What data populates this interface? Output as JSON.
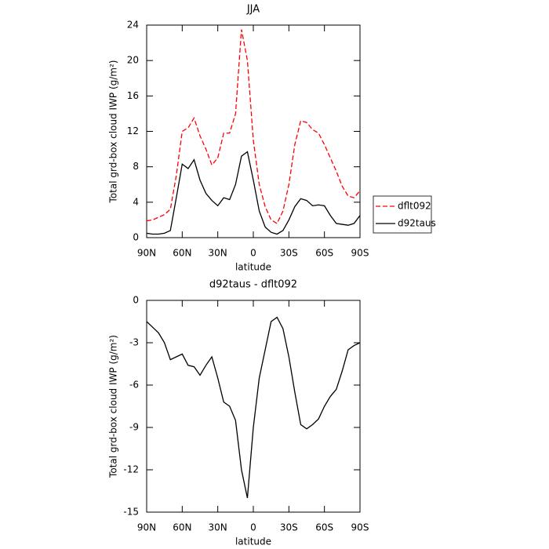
{
  "chart_data": [
    {
      "type": "line",
      "title": "JJA",
      "ylabel": "Total grd-box cloud IWP (g/m²)",
      "xlabel": "latitude",
      "x": [
        90,
        85,
        80,
        75,
        70,
        65,
        60,
        55,
        50,
        45,
        40,
        35,
        30,
        25,
        20,
        15,
        10,
        5,
        0,
        -5,
        -10,
        -15,
        -20,
        -25,
        -30,
        -35,
        -40,
        -45,
        -50,
        -55,
        -60,
        -65,
        -70,
        -75,
        -80,
        -85,
        -90
      ],
      "xlim": [
        90,
        -90
      ],
      "xticks": [
        {
          "value": 90,
          "label": "90N"
        },
        {
          "value": 60,
          "label": "60N"
        },
        {
          "value": 30,
          "label": "30N"
        },
        0,
        {
          "value": -30,
          "label": "30S"
        },
        {
          "value": -60,
          "label": "60S"
        },
        {
          "value": -90,
          "label": "90S"
        }
      ],
      "ylim": [
        0,
        24
      ],
      "yticks": [
        0,
        4,
        8,
        12,
        16,
        20,
        24
      ],
      "legend": "right",
      "series": [
        {
          "name": "dflt092",
          "color": "#ff0000",
          "dash": true,
          "values": [
            1.9,
            2.0,
            2.3,
            2.6,
            3.2,
            7,
            12,
            12.4,
            13.5,
            11.5,
            10,
            8.2,
            9,
            11.8,
            11.8,
            14,
            23.5,
            20,
            11,
            6,
            3.5,
            2,
            1.6,
            3,
            6,
            10.5,
            13.2,
            13,
            12.2,
            11.8,
            10.5,
            9,
            7.5,
            5.8,
            4.7,
            4.5,
            5.3
          ]
        },
        {
          "name": "d92taus",
          "color": "#000000",
          "dash": false,
          "values": [
            0.5,
            0.4,
            0.4,
            0.5,
            0.8,
            4.5,
            8.3,
            7.8,
            8.8,
            6.5,
            5,
            4.2,
            3.6,
            4.5,
            4.3,
            6,
            9.2,
            9.7,
            6.5,
            3,
            1.2,
            0.6,
            0.4,
            0.8,
            2,
            3.5,
            4.4,
            4.2,
            3.6,
            3.7,
            3.6,
            2.5,
            1.6,
            1.5,
            1.4,
            1.6,
            2.5
          ]
        }
      ]
    },
    {
      "type": "line",
      "title": "d92taus - dflt092",
      "ylabel": "Total grd-box cloud IWP (g/m²)",
      "xlabel": "latitude",
      "x": [
        90,
        85,
        80,
        75,
        70,
        65,
        60,
        55,
        50,
        45,
        40,
        35,
        30,
        25,
        20,
        15,
        10,
        5,
        0,
        -5,
        -10,
        -15,
        -20,
        -25,
        -30,
        -35,
        -40,
        -45,
        -50,
        -55,
        -60,
        -65,
        -70,
        -75,
        -80,
        -85,
        -90
      ],
      "xlim": [
        90,
        -90
      ],
      "xticks": [
        {
          "value": 90,
          "label": "90N"
        },
        {
          "value": 60,
          "label": "60N"
        },
        {
          "value": 30,
          "label": "30N"
        },
        0,
        {
          "value": -30,
          "label": "30S"
        },
        {
          "value": -60,
          "label": "60S"
        },
        {
          "value": -90,
          "label": "90S"
        }
      ],
      "ylim": [
        -15,
        0
      ],
      "yticks": [
        0,
        -3,
        -6,
        -9,
        -12,
        -15
      ],
      "series": [
        {
          "color": "#000000",
          "dash": false,
          "values": [
            -1.5,
            -1.9,
            -2.3,
            -3,
            -4.2,
            -4,
            -3.8,
            -4.6,
            -4.7,
            -5.3,
            -4.6,
            -4,
            -5.5,
            -7.2,
            -7.5,
            -8.5,
            -12,
            -14,
            -9,
            -5.5,
            -3.5,
            -1.5,
            -1.2,
            -2,
            -4,
            -6.5,
            -8.8,
            -9.1,
            -8.8,
            -8.4,
            -7.5,
            -6.8,
            -6.3,
            -5,
            -3.5,
            -3.2,
            -3.0
          ]
        }
      ]
    }
  ]
}
